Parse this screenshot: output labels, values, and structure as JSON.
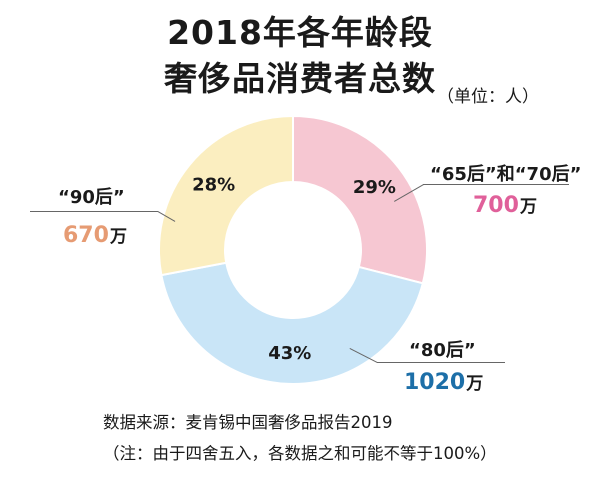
{
  "header": {
    "title_line1": "2018年各年龄段",
    "title_line2": "奢侈品消费者总数",
    "unit": "（单位：人）"
  },
  "chart_data": {
    "type": "pie",
    "donut": true,
    "title": "2018年各年龄段奢侈品消费者总数",
    "unit": "（单位：人）",
    "slices": [
      {
        "category": "“65后”和“70后”",
        "percent": 29,
        "percent_label": "29%",
        "value": 700,
        "value_label": "700",
        "unit_label": "万",
        "color": "#f6c7d2",
        "value_color": "#e0609a"
      },
      {
        "category": "“80后”",
        "percent": 43,
        "percent_label": "43%",
        "value": 1020,
        "value_label": "1020",
        "unit_label": "万",
        "color": "#c9e5f7",
        "value_color": "#1d6fa8"
      },
      {
        "category": "“90后”",
        "percent": 28,
        "percent_label": "28%",
        "value": 670,
        "value_label": "670",
        "unit_label": "万",
        "color": "#fbeec0",
        "value_color": "#e69b73"
      }
    ]
  },
  "footer": {
    "source": "数据来源：麦肯锡中国奢侈品报告2019",
    "note": "（注：由于四舍五入，各数据之和可能不等于100%）"
  }
}
